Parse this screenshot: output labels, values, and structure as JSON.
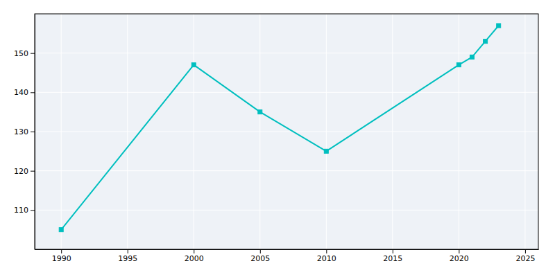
{
  "chart_data": {
    "type": "line",
    "x": [
      1990,
      2000,
      2005,
      2010,
      2020,
      2021,
      2022,
      2023
    ],
    "values": [
      105,
      147,
      135,
      125,
      147,
      149,
      153,
      157
    ],
    "color": "#00BFBF",
    "marker": "square",
    "xlim": [
      1988,
      2026
    ],
    "ylim": [
      100,
      160
    ],
    "xticks": [
      1990,
      1995,
      2000,
      2005,
      2010,
      2015,
      2020,
      2025
    ],
    "yticks": [
      110,
      120,
      130,
      140,
      150
    ],
    "grid": true
  }
}
